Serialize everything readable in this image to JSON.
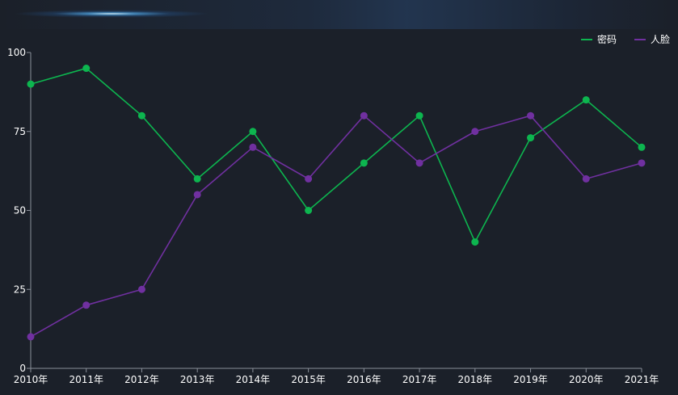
{
  "chart_data": {
    "type": "line",
    "categories": [
      "2010年",
      "2011年",
      "2012年",
      "2013年",
      "2014年",
      "2015年",
      "2016年",
      "2017年",
      "2018年",
      "2019年",
      "2020年",
      "2021年"
    ],
    "series": [
      {
        "name": "密码",
        "color": "#0db54f",
        "values": [
          90,
          95,
          80,
          60,
          75,
          50,
          65,
          80,
          40,
          73,
          85,
          70
        ]
      },
      {
        "name": "人脸",
        "color": "#7030a0",
        "values": [
          10,
          20,
          25,
          55,
          70,
          60,
          80,
          65,
          75,
          80,
          60,
          65
        ]
      }
    ],
    "ylim": [
      0,
      100
    ],
    "yticks": [
      0,
      25,
      50,
      75,
      100
    ],
    "legend_position": "top-right",
    "grid": false
  }
}
